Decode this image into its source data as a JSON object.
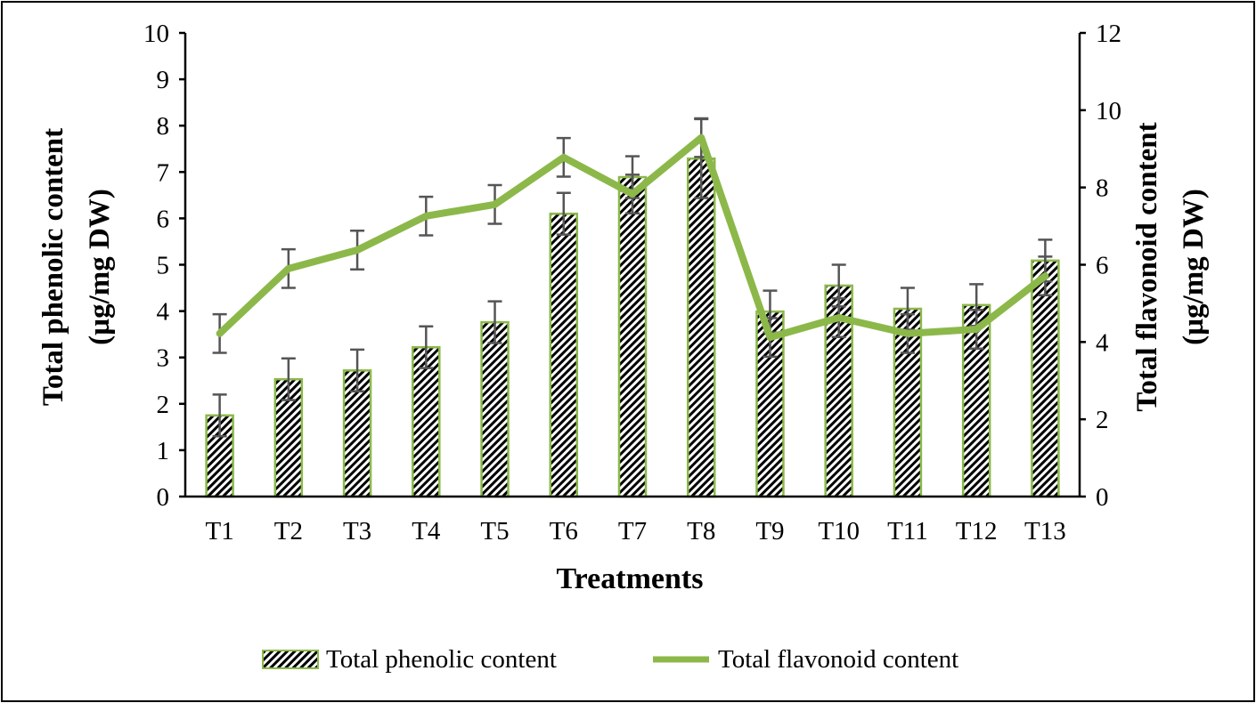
{
  "chart_data": {
    "type": "bar+line",
    "title": "",
    "xlabel": "Treatments",
    "ylabel": "Total phenolic content (µg/mg DW)",
    "ylabel_lines": [
      "Total phenolic content",
      "(µg/mg DW)"
    ],
    "y2label": "Total flavonoid content (µg/mg DW)",
    "y2label_lines": [
      "Total flavonoid content",
      "(µg/mg DW)"
    ],
    "ylim": [
      0,
      10
    ],
    "y2lim": [
      0,
      12
    ],
    "yticks": [
      "0",
      "1",
      "2",
      "3",
      "4",
      "5",
      "6",
      "7",
      "8",
      "9",
      "10"
    ],
    "y2ticks": [
      "0",
      "2",
      "4",
      "6",
      "8",
      "10",
      "12"
    ],
    "categories": [
      "T1",
      "T2",
      "T3",
      "T4",
      "T5",
      "T6",
      "T7",
      "T8",
      "T9",
      "T10",
      "T11",
      "T12",
      "T13"
    ],
    "legend_position": "bottom",
    "series": [
      {
        "name": "Total phenolic content",
        "type": "bar",
        "axis": "left",
        "values": [
          1.75,
          2.53,
          2.72,
          3.22,
          3.76,
          6.1,
          6.89,
          7.29,
          3.99,
          4.55,
          4.05,
          4.13,
          5.09
        ],
        "errors": [
          0.45,
          0.45,
          0.45,
          0.45,
          0.45,
          0.45,
          0.45,
          0.85,
          0.45,
          0.45,
          0.45,
          0.45,
          0.45
        ],
        "color": "#8cb84a"
      },
      {
        "name": "Total flavonoid content",
        "type": "line",
        "axis": "right",
        "values": [
          4.22,
          5.9,
          6.38,
          7.26,
          7.56,
          8.78,
          7.83,
          9.29,
          4.12,
          4.63,
          4.22,
          4.33,
          5.71
        ],
        "errors": [
          0.5,
          0.5,
          0.5,
          0.5,
          0.5,
          0.5,
          0.5,
          0.5,
          0.5,
          0.5,
          0.5,
          0.5,
          0.5
        ],
        "color": "#8cb84a"
      }
    ]
  }
}
